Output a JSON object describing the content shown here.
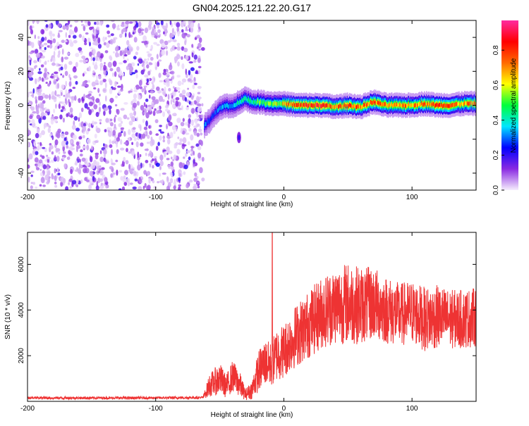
{
  "title": "GN04.2025.121.22.20.G17",
  "colors": {
    "snr_line": "#ee3333",
    "background": "#ffffff"
  },
  "chart_data": [
    {
      "type": "heatmap",
      "name": "spectrogram",
      "xlabel": "Height of straight line (km)",
      "ylabel": "Frequency (Hz)",
      "xlim": [
        -200,
        150
      ],
      "ylim": [
        -50,
        50
      ],
      "xticks": [
        -200,
        -100,
        0,
        100
      ],
      "yticks": [
        -40,
        -20,
        0,
        20,
        40
      ],
      "colorbar": {
        "label": "Normalized spectral amplitude",
        "range": [
          0,
          0.97
        ],
        "ticks": [
          "0.0",
          "0.2",
          "0.4",
          "0.6",
          "0.8"
        ],
        "tick_values": [
          0,
          0.2,
          0.4,
          0.6,
          0.8
        ],
        "colormap": [
          "#f6eefd",
          "#8a2be2",
          "#0000ff",
          "#00e5ff",
          "#00ff3c",
          "#ffff00",
          "#ff6a00",
          "#ff0000",
          "#ff2aa0"
        ]
      },
      "noise_region": {
        "x_start": -200,
        "x_end": -63,
        "description_hidden": true
      },
      "signal_track": {
        "x": [
          -62,
          -58,
          -55,
          -50,
          -45,
          -40,
          -35,
          -30,
          -25,
          -20,
          -10,
          0,
          10,
          20,
          30,
          40,
          50,
          60,
          70,
          80,
          90,
          100,
          110,
          120,
          130,
          140,
          150
        ],
        "y": [
          -12,
          -9,
          -6,
          -2,
          0,
          -1,
          2,
          4,
          2,
          2,
          1,
          1,
          0,
          0,
          0,
          -1,
          0,
          -1,
          2,
          0,
          0,
          0,
          1,
          0,
          0,
          1,
          1
        ],
        "peak_amplitude": [
          0.35,
          0.3,
          0.3,
          0.35,
          0.4,
          0.35,
          0.45,
          0.5,
          0.45,
          0.55,
          0.6,
          0.7,
          0.85,
          0.9,
          0.9,
          0.8,
          0.85,
          0.8,
          0.85,
          0.75,
          0.8,
          0.75,
          0.8,
          0.85,
          0.8,
          0.75,
          0.8
        ]
      },
      "secondary_blob": {
        "x": -35,
        "y": -19
      }
    },
    {
      "type": "line",
      "name": "snr",
      "xlabel": "Height of straight line (km)",
      "ylabel": "SNR (10 * v/v)",
      "xlim": [
        -200,
        150
      ],
      "ylim": [
        0,
        7400
      ],
      "xticks": [
        -200,
        -100,
        0,
        100
      ],
      "yticks": [
        2000,
        4000,
        6000
      ],
      "envelope": {
        "x": [
          -200,
          -150,
          -100,
          -63,
          -58,
          -50,
          -45,
          -40,
          -35,
          -30,
          -25,
          -20,
          -15,
          -10,
          -5,
          0,
          5,
          10,
          20,
          30,
          40,
          50,
          60,
          70,
          80,
          90,
          100,
          110,
          120,
          130,
          140,
          150
        ],
        "mean": [
          150,
          150,
          150,
          170,
          700,
          1000,
          650,
          1100,
          800,
          300,
          500,
          1300,
          1700,
          1600,
          2100,
          2200,
          2600,
          2900,
          3400,
          3900,
          4200,
          4300,
          4200,
          4300,
          4000,
          3800,
          3900,
          3600,
          3700,
          3600,
          3600,
          3700
        ],
        "spread": [
          60,
          60,
          60,
          60,
          500,
          700,
          500,
          700,
          600,
          250,
          400,
          900,
          1000,
          1000,
          1200,
          1200,
          1300,
          1400,
          1500,
          1600,
          1700,
          1800,
          1700,
          1600,
          1500,
          1400,
          1400,
          1400,
          1400,
          1300,
          1300,
          1300
        ]
      },
      "spike": {
        "x": -9,
        "y": 7400
      }
    }
  ]
}
